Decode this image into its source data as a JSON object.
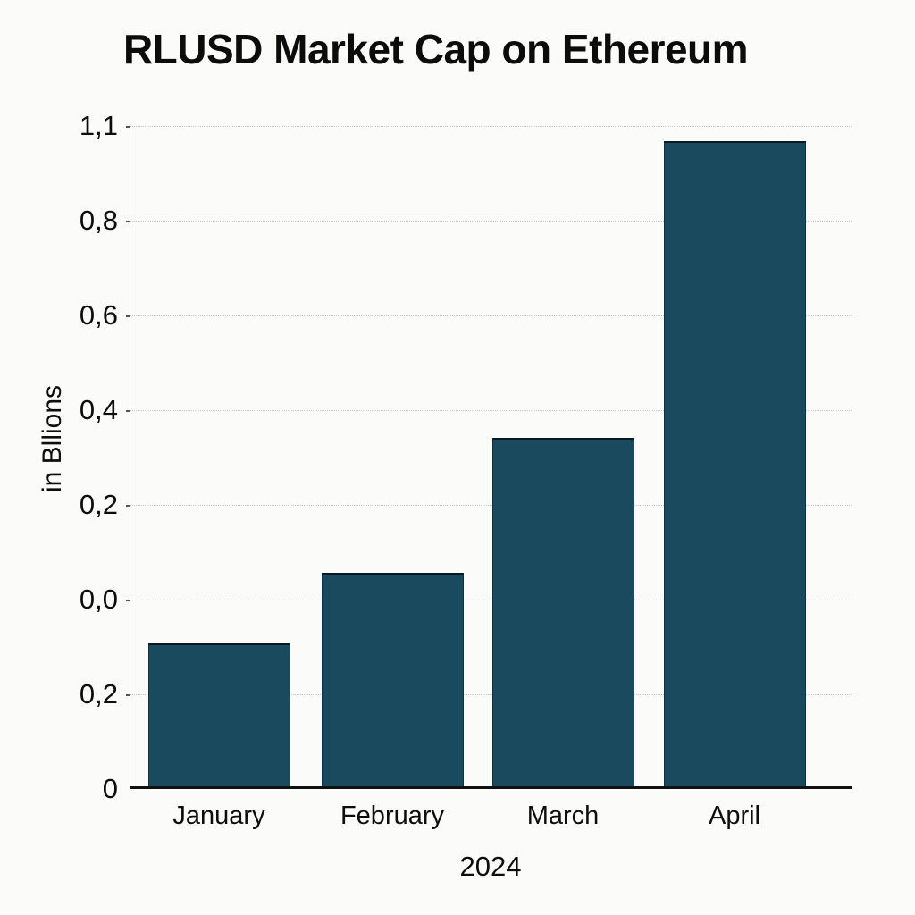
{
  "page": {
    "title": "RLUSD Market Cap on Ethereum"
  },
  "chart_data": {
    "type": "bar",
    "title": "RLUSD Market Cap on Ethereum",
    "xlabel": "2024",
    "ylabel": "in Bllions",
    "categories": [
      "January",
      "February",
      "March",
      "April"
    ],
    "series": [
      {
        "name": "RLUSD Market Cap",
        "values_fraction_of_axis_height": [
          0.216,
          0.322,
          0.526,
          0.973
        ]
      }
    ],
    "ytick_labels_top_to_bottom": [
      "1,1",
      "0,8",
      "0,6",
      "0,4",
      "0,2",
      "0,0",
      "0,2",
      "0"
    ],
    "grid": true,
    "legend": false,
    "bar_color": "#1a4a5e",
    "gridline_color": "#c6c6c6",
    "axis_line_color": "#111111",
    "text_color": "#0d0d0d",
    "background_color": "#fbfbfa"
  }
}
